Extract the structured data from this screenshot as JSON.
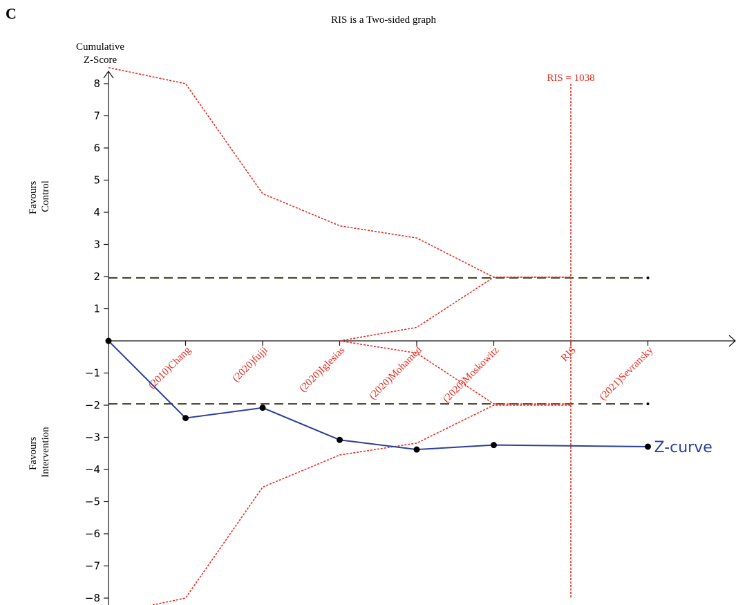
{
  "panel_letter": "C",
  "chart_data": {
    "type": "line",
    "title": "RIS is a Two-sided graph",
    "ylabel_line1": "Cumulative",
    "ylabel_line2": "Z-Score",
    "favours_control": [
      "Favours",
      "Control"
    ],
    "favours_intervention": [
      "Favours",
      "Intervention"
    ],
    "ylim": [
      -8.5,
      8.5
    ],
    "y_ticks": [
      8,
      7,
      6,
      5,
      4,
      3,
      2,
      1,
      -1,
      -2,
      -3,
      -4,
      -5,
      -6,
      -7,
      -8
    ],
    "y_tick_labels": [
      "8",
      "7",
      "6",
      "5",
      "4",
      "3",
      "2",
      "1",
      "−1",
      "−2",
      "−3",
      "−4",
      "−5",
      "−6",
      "−7",
      "−8"
    ],
    "x_positions": [
      0,
      1,
      2,
      3,
      4,
      5,
      6,
      7
    ],
    "x_labels": [
      "(2010)Chang",
      "(2020)fujji",
      "(2020)Iglesias",
      "(2020)Mohamed",
      "(2020)Moskowitz",
      "RIS",
      "(2021)Sevransky"
    ],
    "x_label_positions": [
      1,
      2,
      3,
      4,
      5,
      6,
      7
    ],
    "x_grid": false,
    "y_grid": false,
    "ris_label": "RIS = 1038",
    "ris_position": 6,
    "conventional_boundary": 1.96,
    "z_curve": {
      "name": "Z-curve",
      "x": [
        0,
        1,
        2,
        3,
        4,
        5,
        7
      ],
      "y": [
        0,
        -2.4,
        -2.08,
        -3.08,
        -3.38,
        -3.24,
        -3.29
      ],
      "color": "#2a3f9a"
    },
    "upper_monitoring_boundary": {
      "x": [
        0,
        1,
        2,
        3,
        4,
        5,
        6
      ],
      "y": [
        8.5,
        8.0,
        4.58,
        3.58,
        3.2,
        1.98,
        1.98
      ],
      "color": "#e62b1f"
    },
    "lower_monitoring_boundary": {
      "x": [
        0,
        1,
        2,
        3,
        4,
        5,
        6
      ],
      "y": [
        -8.5,
        -8.0,
        -4.55,
        -3.55,
        -3.18,
        -2.0,
        -2.0
      ],
      "color": "#e62b1f"
    },
    "upper_futility_boundary": {
      "x": [
        3,
        4,
        5,
        6
      ],
      "y": [
        0,
        0.42,
        1.98,
        1.98
      ],
      "color": "#e62b1f"
    },
    "lower_futility_boundary": {
      "x": [
        3,
        4,
        5,
        6
      ],
      "y": [
        0,
        -0.38,
        -1.96,
        -1.96
      ],
      "color": "#e62b1f"
    },
    "colors": {
      "axis": "#111111",
      "boundary": "#e62b1f",
      "conventional": "#3a3a1f",
      "z_curve": "#2a3f9a",
      "marker": "#000000"
    }
  }
}
